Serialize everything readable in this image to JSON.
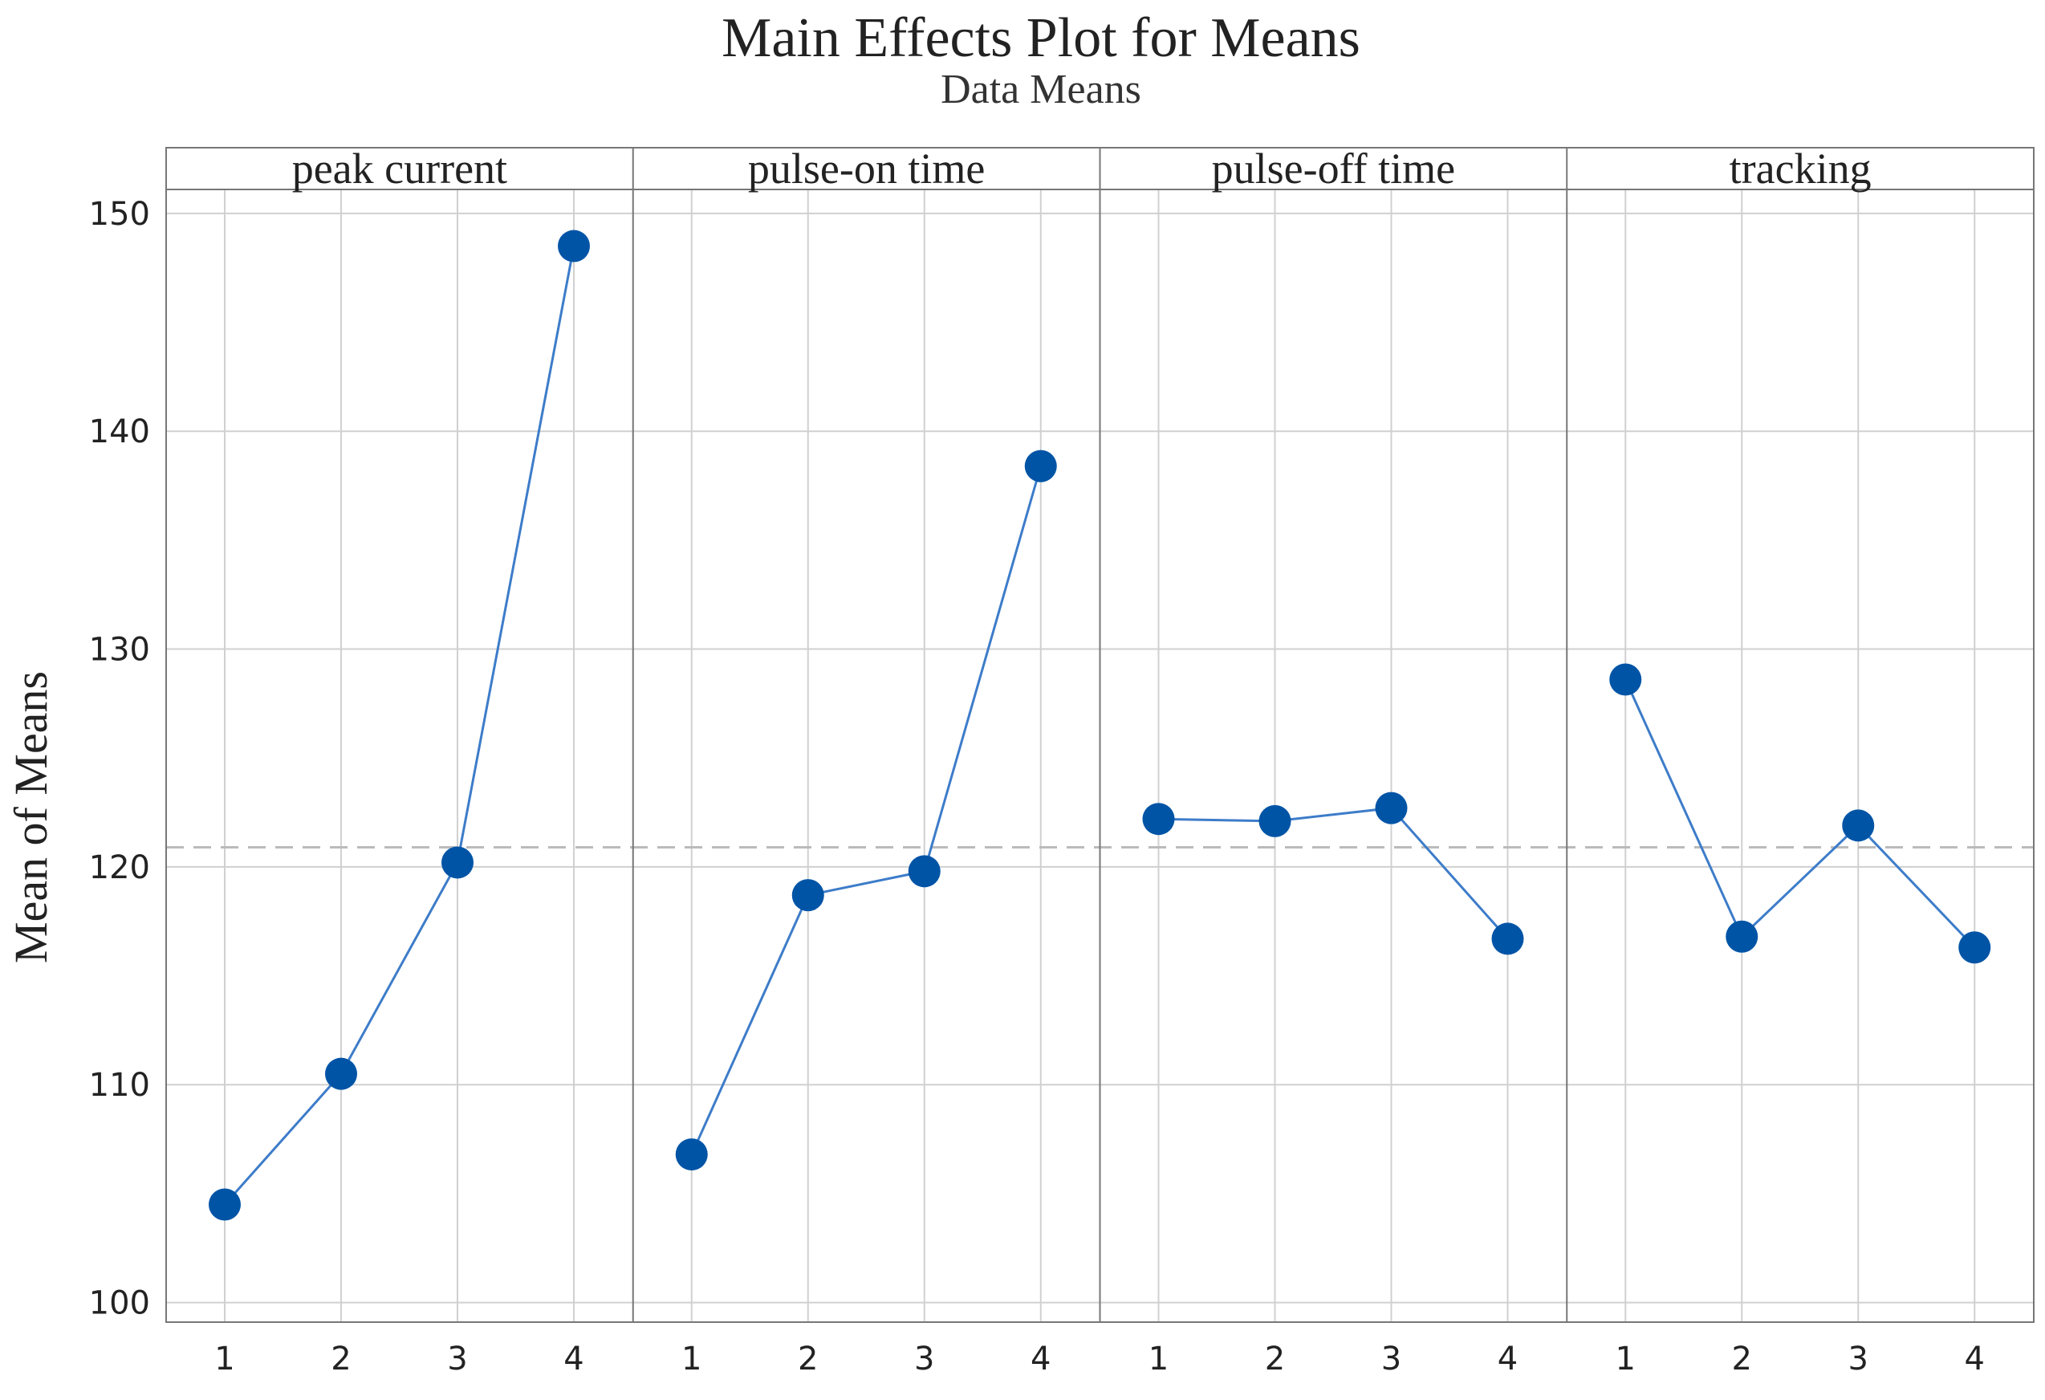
{
  "chart_data": {
    "type": "line",
    "title": "Main Effects Plot for Means",
    "subtitle": "Data Means",
    "ylabel": "Mean of Means",
    "ylim": [
      99.1,
      151.1
    ],
    "yticks": [
      100,
      110,
      120,
      130,
      140,
      150
    ],
    "categories": [
      "1",
      "2",
      "3",
      "4"
    ],
    "reference_line": 120.9,
    "grid": true,
    "colors": {
      "line": "#3d7cc9",
      "marker": "#0054a6",
      "grid": "#d0d0d0",
      "reference": "#bbbbbb",
      "frame": "#777777"
    },
    "series": [
      {
        "name": "peak current",
        "values": [
          104.5,
          110.5,
          120.2,
          148.5
        ]
      },
      {
        "name": "pulse-on time",
        "values": [
          106.8,
          118.7,
          119.8,
          138.4
        ]
      },
      {
        "name": "pulse-off time",
        "values": [
          122.2,
          122.1,
          122.7,
          116.7
        ]
      },
      {
        "name": "tracking",
        "values": [
          128.6,
          116.8,
          121.9,
          116.3
        ]
      }
    ]
  }
}
